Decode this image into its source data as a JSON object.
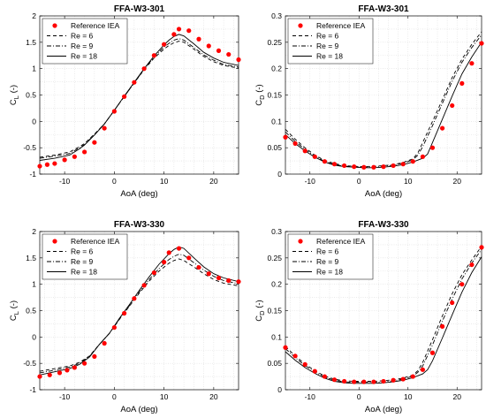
{
  "chart_data": [
    {
      "type": "line",
      "title": "FFA-W3-301",
      "xlabel": "AoA (deg)",
      "ylabel": "C_L (-)",
      "xlim": [
        -15,
        25
      ],
      "ylim": [
        -1,
        2
      ],
      "xticks": [
        -10,
        0,
        10,
        20
      ],
      "yticks": [
        -1,
        -0.5,
        0,
        0.5,
        1,
        1.5,
        2
      ],
      "ytick_labels": [
        "-1",
        "-0.5",
        "0",
        "0.5",
        "1",
        "1.5",
        "2"
      ],
      "grid": true,
      "legend_position": "top-left",
      "reference": {
        "name": "Reference IEA",
        "color": "#ff0000",
        "marker": "circle",
        "x": [
          -15,
          -13.5,
          -12,
          -10,
          -8,
          -6,
          -4,
          -2,
          0,
          2,
          4,
          6,
          8,
          10,
          12,
          13,
          15,
          17,
          19,
          21,
          23,
          25
        ],
        "y": [
          -0.85,
          -0.82,
          -0.8,
          -0.73,
          -0.67,
          -0.58,
          -0.4,
          -0.13,
          0.19,
          0.47,
          0.74,
          1.0,
          1.25,
          1.46,
          1.65,
          1.75,
          1.72,
          1.56,
          1.43,
          1.34,
          1.27,
          1.17
        ]
      },
      "series": [
        {
          "name": "Re = 6",
          "dash": "4 3",
          "x": [
            -15,
            -12,
            -9,
            -7,
            -6,
            -4,
            -2,
            0,
            2,
            4,
            6,
            8,
            10,
            11,
            12,
            13,
            14,
            16,
            18,
            20,
            22,
            25
          ],
          "y": [
            -0.68,
            -0.64,
            -0.58,
            -0.48,
            -0.42,
            -0.24,
            -0.05,
            0.21,
            0.47,
            0.73,
            0.98,
            1.2,
            1.37,
            1.44,
            1.49,
            1.52,
            1.5,
            1.37,
            1.23,
            1.13,
            1.06,
            1.01
          ]
        },
        {
          "name": "Re = 9",
          "dash": "5 2 1 2",
          "x": [
            -15,
            -12,
            -9,
            -7,
            -6,
            -4,
            -2,
            0,
            2,
            4,
            6,
            8,
            10,
            11,
            12,
            13,
            14,
            16,
            18,
            20,
            22,
            25
          ],
          "y": [
            -0.7,
            -0.66,
            -0.61,
            -0.5,
            -0.44,
            -0.25,
            -0.05,
            0.21,
            0.47,
            0.73,
            0.99,
            1.22,
            1.41,
            1.48,
            1.54,
            1.57,
            1.54,
            1.4,
            1.26,
            1.16,
            1.08,
            1.03
          ]
        },
        {
          "name": "Re = 18",
          "dash": "",
          "x": [
            -15,
            -12,
            -9,
            -7,
            -6,
            -4,
            -2,
            0,
            2,
            4,
            6,
            8,
            10,
            11,
            12,
            13,
            14,
            16,
            18,
            20,
            22,
            25
          ],
          "y": [
            -0.74,
            -0.7,
            -0.64,
            -0.52,
            -0.45,
            -0.26,
            -0.05,
            0.21,
            0.48,
            0.74,
            1.0,
            1.24,
            1.45,
            1.54,
            1.61,
            1.65,
            1.62,
            1.47,
            1.31,
            1.2,
            1.12,
            1.06
          ]
        }
      ]
    },
    {
      "type": "line",
      "title": "FFA-W3-301",
      "xlabel": "AoA (deg)",
      "ylabel": "C_D (-)",
      "xlim": [
        -15,
        25
      ],
      "ylim": [
        0,
        0.3
      ],
      "xticks": [
        -10,
        0,
        10,
        20
      ],
      "yticks": [
        0,
        0.05,
        0.1,
        0.15,
        0.2,
        0.25,
        0.3
      ],
      "ytick_labels": [
        "0",
        "0.05",
        "0.1",
        "0.15",
        "0.2",
        "0.25",
        "0.3"
      ],
      "grid": true,
      "legend_position": "top-left",
      "reference": {
        "name": "Reference IEA",
        "color": "#ff0000",
        "marker": "circle",
        "x": [
          -15,
          -13,
          -11,
          -9,
          -7,
          -5,
          -3,
          -1,
          1,
          3,
          5,
          7,
          9,
          11,
          13,
          15,
          17,
          19,
          21,
          23,
          25
        ],
        "y": [
          0.07,
          0.058,
          0.044,
          0.033,
          0.024,
          0.019,
          0.016,
          0.014,
          0.013,
          0.013,
          0.014,
          0.016,
          0.019,
          0.024,
          0.033,
          0.05,
          0.087,
          0.13,
          0.172,
          0.21,
          0.248
        ]
      },
      "series": [
        {
          "name": "Re = 6",
          "dash": "4 3",
          "x": [
            -15,
            -13,
            -11,
            -9,
            -7,
            -5,
            -3,
            -1,
            1,
            3,
            5,
            7,
            9,
            11,
            12,
            13,
            15,
            17,
            19,
            21,
            23,
            25
          ],
          "y": [
            0.085,
            0.066,
            0.05,
            0.036,
            0.026,
            0.02,
            0.016,
            0.015,
            0.014,
            0.015,
            0.016,
            0.018,
            0.022,
            0.029,
            0.04,
            0.06,
            0.1,
            0.141,
            0.183,
            0.218,
            0.246,
            0.27
          ]
        },
        {
          "name": "Re = 9",
          "dash": "5 2 1 2",
          "x": [
            -15,
            -13,
            -11,
            -9,
            -7,
            -5,
            -3,
            -1,
            1,
            3,
            5,
            7,
            9,
            11,
            12,
            13,
            15,
            17,
            19,
            21,
            23,
            25
          ],
          "y": [
            0.08,
            0.062,
            0.047,
            0.034,
            0.024,
            0.018,
            0.015,
            0.014,
            0.013,
            0.014,
            0.015,
            0.017,
            0.021,
            0.027,
            0.036,
            0.052,
            0.092,
            0.134,
            0.176,
            0.212,
            0.24,
            0.264
          ]
        },
        {
          "name": "Re = 18",
          "dash": "",
          "x": [
            -15,
            -13,
            -11,
            -9,
            -7,
            -5,
            -3,
            -1,
            1,
            3,
            5,
            7,
            9,
            11,
            13,
            14,
            15,
            17,
            19,
            21,
            23,
            25
          ],
          "y": [
            0.075,
            0.058,
            0.044,
            0.032,
            0.023,
            0.017,
            0.014,
            0.013,
            0.012,
            0.012,
            0.013,
            0.015,
            0.018,
            0.023,
            0.03,
            0.038,
            0.06,
            0.104,
            0.148,
            0.19,
            0.222,
            0.25
          ]
        }
      ]
    },
    {
      "type": "line",
      "title": "FFA-W3-330",
      "xlabel": "AoA (deg)",
      "ylabel": "C_L (-)",
      "xlim": [
        -15,
        25
      ],
      "ylim": [
        -1,
        2
      ],
      "xticks": [
        -10,
        0,
        10,
        20
      ],
      "yticks": [
        -1,
        -0.5,
        0,
        0.5,
        1,
        1.5,
        2
      ],
      "ytick_labels": [
        "-1",
        "-0.5",
        "0",
        "0.5",
        "1",
        "1.5",
        "2"
      ],
      "grid": true,
      "legend_position": "top-left",
      "reference": {
        "name": "Reference IEA",
        "color": "#ff0000",
        "marker": "circle",
        "x": [
          -15,
          -13,
          -11,
          -9.5,
          -8,
          -6,
          -4,
          -2,
          0,
          2,
          4,
          6,
          8,
          10,
          11,
          13,
          15,
          17,
          19,
          21,
          23,
          25
        ],
        "y": [
          -0.75,
          -0.72,
          -0.68,
          -0.63,
          -0.58,
          -0.5,
          -0.37,
          -0.12,
          0.18,
          0.45,
          0.73,
          0.98,
          1.22,
          1.42,
          1.6,
          1.68,
          1.5,
          1.32,
          1.2,
          1.12,
          1.07,
          1.05
        ]
      },
      "series": [
        {
          "name": "Re = 6",
          "dash": "4 3",
          "x": [
            -15,
            -12,
            -9,
            -7,
            -5,
            -3,
            -1,
            1,
            3,
            5,
            7,
            9,
            11,
            12,
            13,
            14,
            16,
            18,
            20,
            22,
            25
          ],
          "y": [
            -0.65,
            -0.6,
            -0.55,
            -0.48,
            -0.36,
            -0.14,
            0.07,
            0.33,
            0.58,
            0.83,
            1.06,
            1.25,
            1.4,
            1.45,
            1.48,
            1.45,
            1.33,
            1.2,
            1.09,
            1.02,
            0.97
          ]
        },
        {
          "name": "Re = 9",
          "dash": "5 2 1 2",
          "x": [
            -15,
            -12,
            -9,
            -7,
            -5,
            -3,
            -1,
            1,
            3,
            5,
            7,
            9,
            11,
            12,
            13,
            14,
            16,
            18,
            20,
            22,
            25
          ],
          "y": [
            -0.68,
            -0.63,
            -0.57,
            -0.5,
            -0.37,
            -0.14,
            0.07,
            0.34,
            0.59,
            0.85,
            1.09,
            1.3,
            1.47,
            1.53,
            1.57,
            1.55,
            1.41,
            1.27,
            1.15,
            1.07,
            1.01
          ]
        },
        {
          "name": "Re = 18",
          "dash": "",
          "x": [
            -15,
            -12,
            -9,
            -7,
            -5,
            -3,
            -1,
            1,
            3,
            5,
            7,
            9,
            11,
            12,
            13,
            14,
            16,
            18,
            20,
            22,
            25
          ],
          "y": [
            -0.72,
            -0.66,
            -0.6,
            -0.52,
            -0.38,
            -0.14,
            0.07,
            0.35,
            0.61,
            0.88,
            1.14,
            1.38,
            1.58,
            1.66,
            1.71,
            1.68,
            1.5,
            1.33,
            1.2,
            1.12,
            1.05
          ]
        }
      ]
    },
    {
      "type": "line",
      "title": "FFA-W3-330",
      "xlabel": "AoA (deg)",
      "ylabel": "C_D (-)",
      "xlim": [
        -15,
        25
      ],
      "ylim": [
        0,
        0.3
      ],
      "xticks": [
        -10,
        0,
        10,
        20
      ],
      "yticks": [
        0,
        0.05,
        0.1,
        0.15,
        0.2,
        0.25,
        0.3
      ],
      "ytick_labels": [
        "0",
        "0.05",
        "0.1",
        "0.15",
        "0.2",
        "0.25",
        "0.3"
      ],
      "grid": true,
      "legend_position": "top-left",
      "reference": {
        "name": "Reference IEA",
        "color": "#ff0000",
        "marker": "circle",
        "x": [
          -15,
          -13,
          -11,
          -9,
          -7,
          -5,
          -3,
          -1,
          1,
          3,
          5,
          7,
          9,
          11,
          13,
          15,
          17,
          19,
          21,
          23,
          25
        ],
        "y": [
          0.08,
          0.064,
          0.048,
          0.035,
          0.025,
          0.019,
          0.016,
          0.015,
          0.015,
          0.015,
          0.016,
          0.018,
          0.02,
          0.025,
          0.038,
          0.07,
          0.12,
          0.165,
          0.2,
          0.237,
          0.27
        ]
      },
      "series": [
        {
          "name": "Re = 6",
          "dash": "4 3",
          "x": [
            -15,
            -13,
            -11,
            -9,
            -7,
            -5,
            -3,
            -1,
            1,
            3,
            5,
            7,
            9,
            11,
            12,
            13,
            15,
            17,
            19,
            21,
            23,
            25
          ],
          "y": [
            0.082,
            0.064,
            0.049,
            0.036,
            0.026,
            0.02,
            0.017,
            0.016,
            0.016,
            0.016,
            0.017,
            0.019,
            0.022,
            0.028,
            0.036,
            0.052,
            0.095,
            0.14,
            0.182,
            0.218,
            0.246,
            0.272
          ]
        },
        {
          "name": "Re = 9",
          "dash": "5 2 1 2",
          "x": [
            -15,
            -13,
            -11,
            -9,
            -7,
            -5,
            -3,
            -1,
            1,
            3,
            5,
            7,
            9,
            11,
            12,
            13,
            15,
            17,
            19,
            21,
            23,
            25
          ],
          "y": [
            0.078,
            0.061,
            0.046,
            0.034,
            0.024,
            0.018,
            0.015,
            0.014,
            0.014,
            0.014,
            0.015,
            0.017,
            0.02,
            0.026,
            0.033,
            0.045,
            0.085,
            0.13,
            0.172,
            0.21,
            0.24,
            0.266
          ]
        },
        {
          "name": "Re = 18",
          "dash": "",
          "x": [
            -15,
            -13,
            -11,
            -9,
            -7,
            -5,
            -3,
            -1,
            1,
            3,
            5,
            7,
            9,
            11,
            13,
            14,
            15,
            17,
            19,
            21,
            23,
            25
          ],
          "y": [
            0.072,
            0.056,
            0.042,
            0.031,
            0.022,
            0.016,
            0.013,
            0.012,
            0.012,
            0.012,
            0.013,
            0.015,
            0.018,
            0.023,
            0.03,
            0.038,
            0.055,
            0.098,
            0.142,
            0.185,
            0.222,
            0.252
          ]
        }
      ]
    }
  ]
}
